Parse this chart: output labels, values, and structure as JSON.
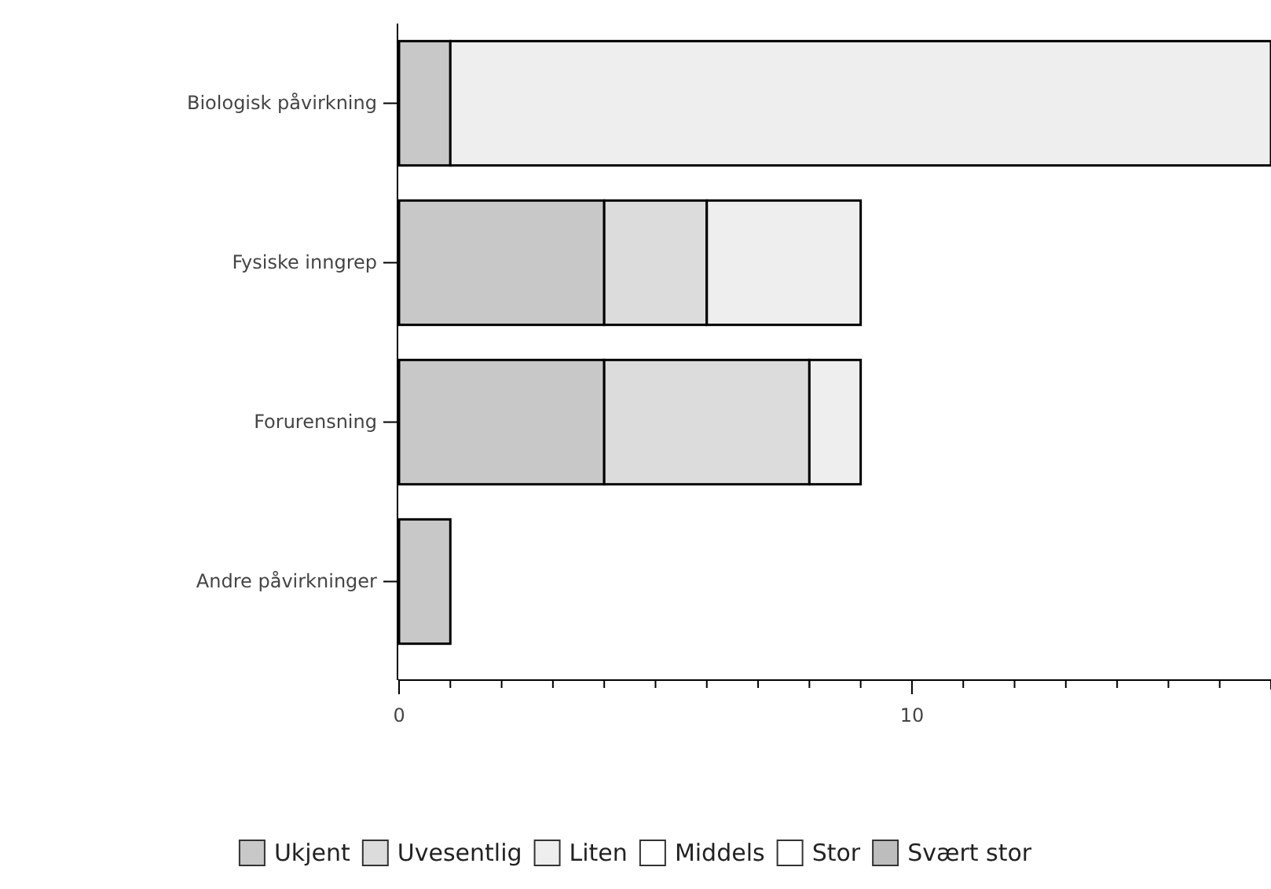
{
  "chart_data": {
    "type": "bar",
    "orientation": "horizontal",
    "stacked": true,
    "categories": [
      "Biologisk påvirkning",
      "Fysiske inngrep",
      "Forurensning",
      "Andre påvirkninger"
    ],
    "series": [
      {
        "name": "Ukjent",
        "color": "#c8c8c8",
        "values": [
          1,
          4,
          4,
          1
        ]
      },
      {
        "name": "Uvesentlig",
        "color": "#dcdcdc",
        "values": [
          null,
          2,
          4,
          null
        ]
      },
      {
        "name": "Liten",
        "color": "#eeeeee",
        "values": [
          16,
          3,
          1,
          null
        ]
      },
      {
        "name": "Middels",
        "color": "#ffffff",
        "values": [
          null,
          null,
          null,
          null
        ]
      },
      {
        "name": "Stor",
        "color": "#ffffff",
        "values": [
          null,
          null,
          null,
          null
        ]
      },
      {
        "name": "Svært stor",
        "color": "#bdbdbd",
        "values": [
          null,
          null,
          null,
          null
        ]
      }
    ],
    "xlim": [
      0,
      17
    ],
    "xticks": [
      0,
      {
        "value": 1,
        "label": null
      },
      {
        "value": 2,
        "label": null
      },
      {
        "value": 3,
        "label": null
      },
      {
        "value": 4,
        "label": null
      },
      {
        "value": 5,
        "label": null
      },
      {
        "value": 6,
        "label": null
      },
      {
        "value": 7,
        "label": null
      },
      {
        "value": 8,
        "label": null
      },
      {
        "value": 9,
        "label": null
      },
      10,
      {
        "value": 11,
        "label": null
      },
      {
        "value": 12,
        "label": null
      },
      {
        "value": 13,
        "label": null
      },
      {
        "value": 14,
        "label": null
      },
      {
        "value": 15,
        "label": null
      },
      {
        "value": 16,
        "label": null
      }
    ],
    "grid": false,
    "legend": "bottom"
  }
}
